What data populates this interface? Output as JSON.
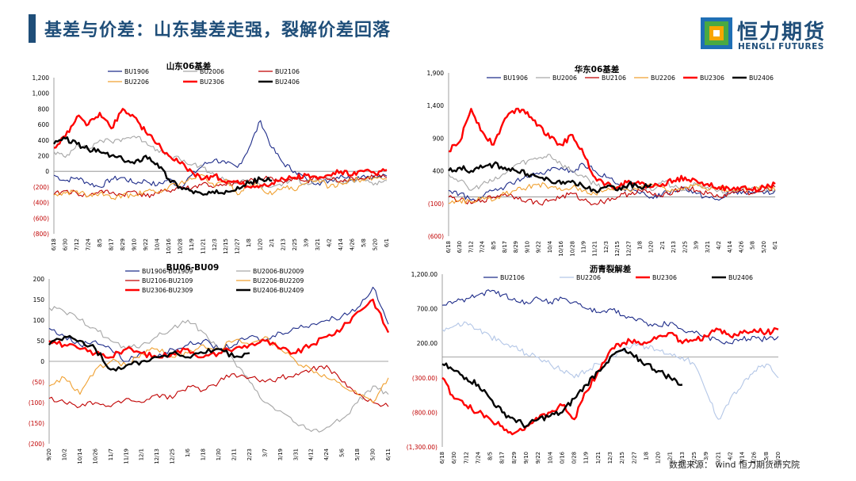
{
  "header": {
    "title": "基差与价差：山东基差走强，裂解价差回落",
    "logo_cn": "恒力期货",
    "logo_en": "HENGLI FUTURES"
  },
  "source": "数据来源： wind 恒力期货研究院",
  "colors": {
    "title": "#1f4e79",
    "navy": "#1f2d8a",
    "gray": "#a6a6a6",
    "darkred": "#c00000",
    "orange": "#f0a030",
    "red": "#ff0000",
    "black": "#000000",
    "lightblue": "#b4c7e7"
  },
  "chart_data": [
    {
      "type": "line",
      "title": "山东06基差",
      "ylim": [
        -800,
        1200
      ],
      "yticks": [
        "1,200",
        "1,000",
        "800",
        "600",
        "400",
        "200",
        "0",
        "(200)",
        "(400)",
        "(600)",
        "(800)"
      ],
      "xticks": [
        "6/18",
        "6/30",
        "7/12",
        "7/24",
        "8/5",
        "8/17",
        "8/29",
        "9/10",
        "9/22",
        "10/4",
        "10/16",
        "10/28",
        "11/9",
        "11/21",
        "12/3",
        "12/15",
        "12/27",
        "1/8",
        "1/20",
        "2/1",
        "2/13",
        "2/25",
        "3/9",
        "3/21",
        "4/2",
        "4/14",
        "4/26",
        "5/8",
        "5/20",
        "6/1"
      ],
      "series": [
        {
          "name": "BU1906",
          "color": "navy",
          "values": [
            -50,
            -120,
            -80,
            -150,
            -200,
            -100,
            -80,
            -150,
            -120,
            -180,
            -100,
            -200,
            -50,
            80,
            150,
            100,
            50,
            300,
            650,
            300,
            100,
            0,
            -100,
            -150,
            -120,
            -50,
            -100,
            -50,
            -80,
            -60
          ],
          "end": 29
        },
        {
          "name": "BU2006",
          "color": "gray",
          "values": [
            250,
            180,
            350,
            280,
            400,
            380,
            420,
            450,
            380,
            280,
            200,
            150,
            80,
            50,
            -50,
            -100,
            -150,
            -120,
            -180,
            -200,
            -150,
            -100,
            -150,
            -120,
            -100,
            -150,
            -120,
            -100,
            -150,
            -120
          ],
          "end": 29
        },
        {
          "name": "BU2106",
          "color": "darkred",
          "values": [
            -300,
            -250,
            -280,
            -320,
            -250,
            -280,
            -300,
            -250,
            -320,
            -280,
            -250,
            -200,
            -220,
            -150,
            -200,
            -180,
            -150,
            -120,
            -100,
            -80,
            -150,
            -100,
            -120,
            -80,
            -100,
            -120,
            -80,
            -100,
            -50,
            -80
          ],
          "end": 29
        },
        {
          "name": "BU2206",
          "color": "orange",
          "values": [
            -300,
            -280,
            -250,
            -320,
            -280,
            -350,
            -300,
            -320,
            -250,
            -280,
            -200,
            -150,
            -100,
            -50,
            -200,
            -100,
            -300,
            -150,
            -200,
            -300,
            -200,
            -250,
            -150,
            -100,
            -200,
            -150,
            -100,
            -120,
            -80,
            -100
          ],
          "end": 29
        },
        {
          "name": "BU2306",
          "color": "red",
          "values": [
            300,
            450,
            700,
            600,
            750,
            550,
            800,
            700,
            500,
            350,
            200,
            100,
            0,
            -100,
            -50,
            -150,
            -120,
            -200,
            -180,
            -150,
            -100,
            -80,
            -50,
            -100,
            -50,
            0,
            -50,
            0,
            -30,
            20
          ],
          "end": 29
        },
        {
          "name": "BU2406",
          "color": "black",
          "values": [
            350,
            420,
            350,
            280,
            250,
            200,
            150,
            100,
            200,
            100,
            -100,
            -200,
            -250,
            -300,
            -280,
            -250,
            -200,
            -150,
            -100,
            -120
          ],
          "end": 19
        }
      ]
    },
    {
      "type": "line",
      "title": "华东06基差",
      "ylim": [
        -600,
        1900
      ],
      "yticks": [
        "1,900",
        "1,400",
        "900",
        "400",
        "(100)",
        "(600)"
      ],
      "xticks": [
        "6/18",
        "6/30",
        "7/12",
        "7/24",
        "8/5",
        "8/17",
        "8/29",
        "9/10",
        "9/22",
        "10/4",
        "10/16",
        "10/28",
        "11/9",
        "11/21",
        "12/3",
        "12/15",
        "12/27",
        "1/8",
        "1/20",
        "2/1",
        "2/13",
        "2/25",
        "3/9",
        "3/21",
        "4/2",
        "4/14",
        "4/26",
        "5/8",
        "5/20",
        "6/1"
      ],
      "series": [
        {
          "name": "BU1906",
          "color": "navy",
          "values": [
            100,
            50,
            -50,
            0,
            100,
            150,
            250,
            300,
            350,
            400,
            450,
            380,
            500,
            400,
            300,
            200,
            100,
            50,
            0,
            50,
            100,
            150,
            50,
            0,
            -50,
            100,
            50,
            80,
            50,
            100
          ],
          "end": 29
        },
        {
          "name": "BU2006",
          "color": "gray",
          "values": [
            350,
            250,
            100,
            200,
            250,
            350,
            500,
            550,
            600,
            650,
            500,
            400,
            300,
            200,
            150,
            100,
            200,
            150,
            100,
            250,
            150,
            100,
            200,
            150,
            100,
            50,
            100,
            150,
            100,
            120
          ],
          "end": 29
        },
        {
          "name": "BU2106",
          "color": "darkred",
          "values": [
            0,
            -50,
            -100,
            -50,
            0,
            50,
            0,
            -50,
            -100,
            -50,
            0,
            50,
            -50,
            -100,
            -50,
            0,
            50,
            100,
            50,
            0,
            100,
            150,
            100,
            50,
            0,
            50,
            100,
            50,
            100,
            150
          ],
          "end": 29
        },
        {
          "name": "BU2206",
          "color": "orange",
          "values": [
            -100,
            -50,
            -80,
            0,
            -50,
            50,
            100,
            150,
            200,
            150,
            100,
            150,
            100,
            50,
            100,
            150,
            100,
            150,
            200,
            150,
            100,
            150,
            200,
            100,
            150,
            100,
            150,
            100,
            150,
            100
          ],
          "end": 29
        },
        {
          "name": "BU2306",
          "color": "red",
          "values": [
            700,
            850,
            1350,
            1000,
            800,
            1200,
            1350,
            1300,
            1100,
            900,
            800,
            950,
            650,
            300,
            200,
            150,
            250,
            200,
            150,
            200,
            250,
            300,
            250,
            200,
            150,
            100,
            150,
            100,
            150,
            200
          ],
          "end": 29
        },
        {
          "name": "BU2406",
          "color": "black",
          "values": [
            400,
            450,
            400,
            450,
            500,
            450,
            400,
            350,
            300,
            250,
            200,
            250,
            150,
            100,
            150,
            100,
            200,
            150,
            200
          ],
          "end": 18
        }
      ]
    },
    {
      "type": "line",
      "title": "BU06-BU09",
      "ylim": [
        -200,
        200
      ],
      "yticks": [
        "200",
        "150",
        "100",
        "50",
        "0",
        "(50)",
        "(100)",
        "(150)",
        "(200)"
      ],
      "xticks": [
        "9/20",
        "10/2",
        "10/14",
        "10/26",
        "11/7",
        "11/19",
        "12/1",
        "12/13",
        "12/25",
        "1/6",
        "1/18",
        "1/30",
        "2/11",
        "2/23",
        "3/7",
        "3/19",
        "3/31",
        "4/12",
        "4/24",
        "5/6",
        "5/18",
        "5/30",
        "6/11"
      ],
      "series": [
        {
          "name": "BU1906-BU1909",
          "color": "navy",
          "values": [
            80,
            60,
            40,
            50,
            30,
            0,
            20,
            10,
            30,
            40,
            50,
            30,
            40,
            60,
            50,
            70,
            80,
            90,
            100,
            110,
            130,
            180,
            90
          ],
          "end": 22
        },
        {
          "name": "BU2006-BU2009",
          "color": "gray",
          "values": [
            130,
            120,
            100,
            80,
            50,
            30,
            40,
            60,
            80,
            100,
            70,
            30,
            0,
            -50,
            -100,
            -120,
            -150,
            -170,
            -160,
            -140,
            -100,
            -60,
            -80
          ],
          "end": 22
        },
        {
          "name": "BU2106-BU2109",
          "color": "darkred",
          "values": [
            -90,
            -100,
            -110,
            -100,
            -110,
            -90,
            -100,
            -80,
            -90,
            -60,
            -70,
            -50,
            -30,
            -40,
            -50,
            -40,
            -30,
            -20,
            -10,
            -50,
            -80,
            -100,
            -110
          ],
          "end": 22
        },
        {
          "name": "BU2206-BU2209",
          "color": "orange",
          "values": [
            -60,
            -40,
            -80,
            -20,
            0,
            -10,
            20,
            30,
            10,
            20,
            40,
            30,
            50,
            40,
            60,
            30,
            0,
            -20,
            -40,
            -60,
            -80,
            -100,
            -40
          ],
          "end": 22
        },
        {
          "name": "BU2306-BU2309",
          "color": "red",
          "values": [
            50,
            40,
            30,
            20,
            10,
            30,
            20,
            10,
            20,
            30,
            10,
            20,
            30,
            40,
            50,
            30,
            20,
            40,
            60,
            80,
            120,
            150,
            70
          ],
          "end": 22
        },
        {
          "name": "BU2406-BU2409",
          "color": "black",
          "values": [
            40,
            60,
            50,
            30,
            -20,
            -10,
            0,
            10,
            20,
            10,
            20,
            30,
            10,
            20
          ],
          "end": 13
        }
      ]
    },
    {
      "type": "line",
      "title": "沥青裂解差",
      "ylim": [
        -1300,
        1200
      ],
      "yticks": [
        "1,200.00",
        "700.00",
        "200.00",
        "(300.00)",
        "(800.00)",
        "(1,300.00)"
      ],
      "xticks": [
        "6/18",
        "6/30",
        "7/12",
        "7/24",
        "8/5",
        "8/17",
        "8/29",
        "9/10",
        "9/22",
        "10/4",
        "10/16",
        "10/28",
        "11/9",
        "11/21",
        "12/3",
        "12/15",
        "12/27",
        "1/8",
        "1/20",
        "2/1",
        "2/13",
        "2/25",
        "3/9",
        "3/21",
        "4/2",
        "4/14",
        "4/26",
        "5/8",
        "5/20"
      ],
      "series": [
        {
          "name": "BU2106",
          "color": "navy",
          "values": [
            750,
            800,
            850,
            900,
            950,
            900,
            850,
            800,
            850,
            800,
            850,
            800,
            700,
            650,
            700,
            600,
            550,
            500,
            450,
            500,
            400,
            350,
            300,
            250,
            200,
            250,
            300,
            250,
            300
          ],
          "end": 28
        },
        {
          "name": "BU2206",
          "color": "lightblue",
          "values": [
            400,
            450,
            500,
            400,
            300,
            200,
            150,
            50,
            0,
            -100,
            -200,
            -300,
            -200,
            -100,
            0,
            100,
            200,
            150,
            100,
            50,
            0,
            -100,
            -500,
            -900,
            -600,
            -400,
            -200,
            -100,
            -300
          ],
          "end": 28
        },
        {
          "name": "BU2306",
          "color": "red",
          "values": [
            -300,
            -600,
            -700,
            -800,
            -900,
            -1000,
            -1100,
            -1000,
            -900,
            -800,
            -700,
            -900,
            -500,
            -200,
            100,
            200,
            250,
            200,
            300,
            350,
            200,
            250,
            300,
            400,
            300,
            350,
            400,
            350,
            400
          ],
          "end": 28
        },
        {
          "name": "BU2406",
          "color": "black",
          "values": [
            -100,
            -200,
            -300,
            -400,
            -600,
            -800,
            -900,
            -1000,
            -900,
            -850,
            -800,
            -600,
            -400,
            -200,
            0,
            100,
            0,
            -100,
            -200,
            -300,
            -400
          ],
          "end": 20
        }
      ]
    }
  ]
}
